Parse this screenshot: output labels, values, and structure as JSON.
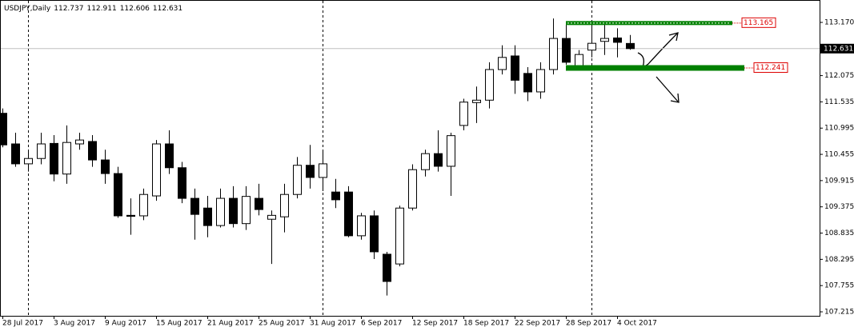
{
  "chart_data": {
    "type": "candlestick",
    "title": "USDJPY,Daily",
    "header_values": [
      112.737,
      112.911,
      112.606,
      112.631
    ],
    "categories": [
      "28 Jul 2017",
      null,
      null,
      null,
      "3 Aug 2017",
      null,
      null,
      null,
      "9 Aug 2017",
      null,
      null,
      null,
      "15 Aug 2017",
      null,
      null,
      null,
      "21 Aug 2017",
      null,
      null,
      null,
      "25 Aug 2017",
      null,
      null,
      null,
      "31 Aug 2017",
      null,
      null,
      null,
      "6 Sep 2017",
      null,
      null,
      null,
      "12 Sep 2017",
      null,
      null,
      null,
      "18 Sep 2017",
      null,
      null,
      null,
      "22 Sep 2017",
      null,
      null,
      null,
      "28 Sep 2017",
      null,
      null,
      null,
      "4 Oct 2017",
      null
    ],
    "open": [
      111.3,
      110.67,
      110.26,
      110.37,
      110.68,
      110.05,
      110.67,
      110.72,
      110.34,
      110.06,
      109.2,
      109.19,
      109.6,
      110.67,
      110.18,
      109.55,
      109.35,
      108.99,
      109.55,
      109.03,
      109.55,
      109.12,
      109.17,
      109.63,
      110.23,
      109.98,
      109.68,
      109.68,
      108.78,
      109.19,
      108.4,
      108.2,
      109.35,
      110.14,
      110.47,
      110.21,
      111.05,
      111.52,
      111.57,
      112.2,
      112.48,
      112.12,
      111.74,
      112.2,
      112.84,
      112.28,
      112.6,
      112.78,
      112.85,
      112.737
    ],
    "high": [
      111.4,
      110.9,
      110.55,
      110.9,
      110.85,
      111.05,
      110.9,
      110.85,
      110.55,
      110.2,
      109.55,
      109.75,
      110.75,
      110.95,
      110.3,
      109.75,
      109.6,
      109.75,
      109.8,
      109.8,
      109.85,
      109.3,
      109.85,
      110.4,
      110.65,
      110.55,
      109.95,
      109.8,
      109.25,
      109.3,
      108.45,
      109.4,
      110.25,
      110.55,
      110.95,
      110.9,
      111.6,
      111.85,
      112.35,
      112.7,
      112.7,
      112.25,
      112.35,
      113.25,
      113.18,
      112.6,
      113.1,
      113.15,
      113.05,
      112.911
    ],
    "low": [
      110.6,
      110.2,
      110.1,
      110.25,
      109.9,
      109.85,
      110.55,
      110.2,
      109.85,
      109.15,
      108.8,
      109.1,
      109.5,
      110.05,
      109.45,
      108.7,
      108.75,
      108.95,
      108.95,
      108.9,
      109.2,
      108.2,
      108.85,
      109.55,
      109.75,
      109.7,
      109.35,
      108.75,
      108.7,
      108.3,
      107.55,
      108.15,
      109.3,
      110.0,
      110.1,
      109.6,
      110.95,
      111.1,
      111.4,
      112.1,
      111.7,
      111.55,
      111.6,
      112.1,
      112.3,
      112.2,
      112.45,
      112.5,
      112.45,
      112.606
    ],
    "close": [
      110.65,
      110.26,
      110.37,
      110.67,
      110.05,
      110.7,
      110.75,
      110.34,
      110.06,
      109.19,
      109.18,
      109.63,
      110.67,
      110.18,
      109.55,
      109.22,
      108.99,
      109.55,
      109.03,
      109.59,
      109.32,
      109.2,
      109.63,
      110.23,
      109.98,
      110.26,
      109.52,
      108.78,
      109.19,
      108.45,
      107.84,
      109.35,
      110.14,
      110.47,
      110.21,
      110.84,
      111.53,
      111.57,
      112.2,
      112.45,
      111.98,
      111.74,
      112.2,
      112.84,
      112.35,
      112.51,
      112.74,
      112.84,
      112.76,
      112.631
    ],
    "up_color": "#ffffff",
    "down_color": "#000000",
    "ylim": [
      107.133,
      113.631
    ],
    "yticks": [
      {
        "value": 113.17,
        "label": "113.170"
      },
      112.075,
      111.535,
      110.995,
      110.455,
      109.915,
      109.375,
      108.835,
      108.295,
      107.755,
      107.215
    ],
    "current_price": 112.631,
    "levels": [
      {
        "value": 113.165,
        "color": "#008000"
      },
      {
        "value": 112.241,
        "color": "#008000"
      }
    ]
  }
}
